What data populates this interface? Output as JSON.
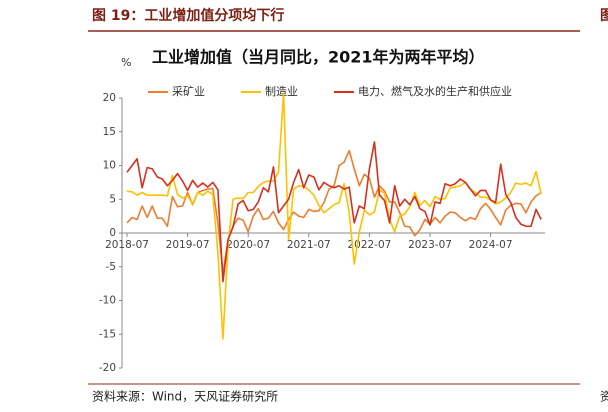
{
  "header": {
    "title": "图 19：工业增加值分项均下行"
  },
  "side_panel": {
    "title": "图",
    "source": "资"
  },
  "footer": {
    "source": "资料来源：Wind，天风证券研究所"
  },
  "chart_data": {
    "type": "line",
    "title": "工业增加值（当月同比，2021年为两年平均）",
    "y_label": "%",
    "categories": [
      "2018-07",
      null,
      null,
      null,
      null,
      null,
      null,
      null,
      null,
      null,
      null,
      null,
      "2019-07",
      null,
      null,
      null,
      null,
      null,
      null,
      null,
      null,
      null,
      null,
      null,
      "2020-07",
      null,
      null,
      null,
      null,
      null,
      null,
      null,
      null,
      null,
      null,
      null,
      "2021-07",
      null,
      null,
      null,
      null,
      null,
      null,
      null,
      null,
      null,
      null,
      null,
      "2022-07",
      null,
      null,
      null,
      null,
      null,
      null,
      null,
      null,
      null,
      null,
      null,
      "2023-07",
      null,
      null,
      null,
      null,
      null,
      null,
      null,
      null,
      null,
      null,
      null,
      "2024-07",
      null,
      null,
      null,
      null,
      null,
      null,
      null,
      null,
      null,
      null
    ],
    "series": [
      {
        "name": "采矿业",
        "color": "#ed7d31",
        "values": [
          1.5,
          2.3,
          2.0,
          4.0,
          2.3,
          4.0,
          2.2,
          2.2,
          1.0,
          5.4,
          3.9,
          4.0,
          6.0,
          4.2,
          6.0,
          6.3,
          6.5,
          6.6,
          1.5,
          -6.0,
          -1.0,
          1.0,
          2.2,
          1.9,
          0.2,
          2.5,
          3.6,
          2.0,
          2.2,
          3.2,
          1.5,
          0.5,
          2.0,
          3.1,
          2.5,
          2.3,
          3.5,
          3.2,
          3.3,
          4.5,
          6.5,
          7.0,
          10.0,
          10.5,
          12.2,
          9.5,
          7.0,
          8.7,
          8.1,
          5.3,
          7.0,
          6.2,
          4.6,
          4.6,
          3.0,
          1.0,
          0.9,
          -0.4,
          0.5,
          2.0,
          1.3,
          2.3,
          1.5,
          2.5,
          3.1,
          3.0,
          2.3,
          1.8,
          2.3,
          2.0,
          3.6,
          4.4,
          3.5,
          2.3,
          1.2,
          3.4,
          4.1,
          4.4,
          4.3,
          3.0,
          4.6,
          5.5,
          6.0
        ]
      },
      {
        "name": "制造业",
        "color": "#ffc000",
        "values": [
          6.2,
          6.1,
          5.6,
          6.0,
          5.6,
          5.6,
          5.6,
          5.6,
          5.5,
          8.5,
          5.7,
          5.2,
          5.5,
          4.3,
          6.0,
          5.6,
          6.2,
          5.7,
          -3.0,
          -15.7,
          -1.8,
          5.0,
          5.2,
          5.1,
          6.0,
          6.0,
          6.9,
          7.5,
          7.7,
          7.7,
          9.0,
          20.7,
          -1.0,
          6.5,
          7.0,
          6.9,
          6.4,
          5.6,
          4.1,
          3.0,
          3.6,
          4.2,
          4.5,
          7.3,
          3.0,
          -4.6,
          0.1,
          3.4,
          2.7,
          3.1,
          6.4,
          5.9,
          2.0,
          0.2,
          2.5,
          2.8,
          3.9,
          6.0,
          4.1,
          4.8,
          3.9,
          5.4,
          5.0,
          5.1,
          6.7,
          6.8,
          7.0,
          7.5,
          6.5,
          6.0,
          5.3,
          5.3,
          4.9,
          4.3,
          4.6,
          5.2,
          6.0,
          7.4,
          7.2,
          7.4,
          7.0,
          9.1,
          5.8
        ]
      },
      {
        "name": "电力、燃气及水的生产和供应业",
        "color": "#d6301e",
        "values": [
          9.0,
          10.0,
          11.0,
          6.7,
          9.7,
          9.5,
          8.3,
          8.0,
          7.0,
          7.8,
          8.8,
          7.7,
          6.3,
          7.8,
          6.8,
          7.4,
          6.8,
          7.5,
          6.4,
          -7.2,
          -1.0,
          0.9,
          4.3,
          4.8,
          3.3,
          3.5,
          4.6,
          6.7,
          6.1,
          9.8,
          3.0,
          4.0,
          5.0,
          7.5,
          9.4,
          6.7,
          8.6,
          8.3,
          6.4,
          7.5,
          7.0,
          6.7,
          7.0,
          6.5,
          6.8,
          1.5,
          4.0,
          3.6,
          9.5,
          13.5,
          5.6,
          4.8,
          1.5,
          7.0,
          4.0,
          5.0,
          4.2,
          5.4,
          3.6,
          3.2,
          1.2,
          4.6,
          4.4,
          7.3,
          7.0,
          7.3,
          8.0,
          7.5,
          6.5,
          5.5,
          6.3,
          6.3,
          4.9,
          4.5,
          10.2,
          5.7,
          4.5,
          2.3,
          1.3,
          1.0,
          1.0,
          3.5,
          2.0
        ]
      }
    ],
    "ylim": [
      -20,
      20
    ],
    "yticks": [
      -20,
      -15,
      -10,
      -5,
      0,
      5,
      10,
      15,
      20
    ],
    "grid": false,
    "legend": "top"
  }
}
